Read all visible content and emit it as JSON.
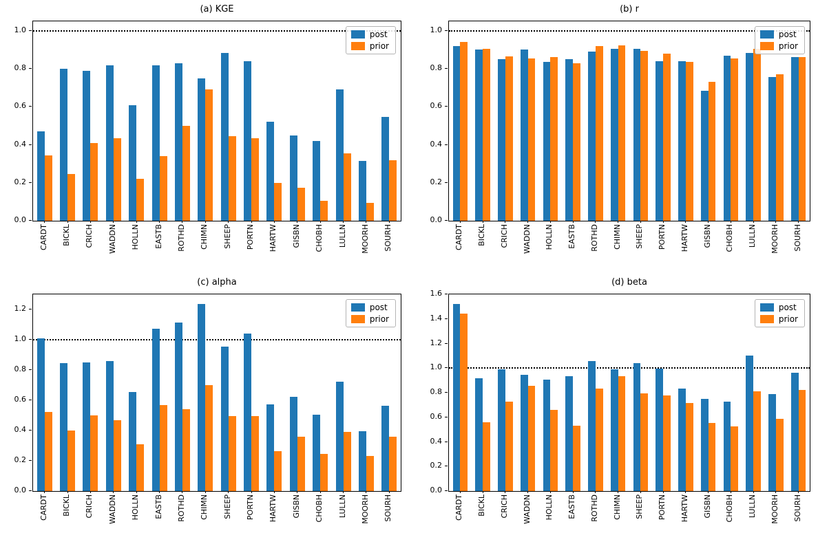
{
  "colors": {
    "post": "#1f77b4",
    "prior": "#ff7f0e",
    "refline": "#000000"
  },
  "legend": {
    "entries": [
      "post",
      "prior"
    ],
    "position": "upper right"
  },
  "chart_data": [
    {
      "type": "bar",
      "title": "(a) KGE",
      "categories": [
        "CARDT",
        "BICKL",
        "CRICH",
        "WADDN",
        "HOLLN",
        "EASTB",
        "ROTHD",
        "CHIMN",
        "SHEEP",
        "PORTN",
        "HARTW",
        "GISBN",
        "CHOBH",
        "LULLN",
        "MOORH",
        "SOURH"
      ],
      "series": [
        {
          "name": "post",
          "color": "#1f77b4",
          "values": [
            0.47,
            0.8,
            0.79,
            0.82,
            0.61,
            0.82,
            0.83,
            0.75,
            0.885,
            0.84,
            0.52,
            0.45,
            0.42,
            0.69,
            0.315,
            0.545
          ]
        },
        {
          "name": "prior",
          "color": "#ff7f0e",
          "values": [
            0.345,
            0.245,
            0.41,
            0.435,
            0.22,
            0.34,
            0.5,
            0.69,
            0.445,
            0.435,
            0.2,
            0.175,
            0.105,
            0.355,
            0.095,
            0.32
          ]
        }
      ],
      "ylim": [
        0,
        1.05
      ],
      "yticks": [
        0.0,
        0.2,
        0.4,
        0.6,
        0.8,
        1.0
      ],
      "refline": 1.0,
      "grid": false,
      "legend_position": "upper right"
    },
    {
      "type": "bar",
      "title": "(b) r",
      "categories": [
        "CARDT",
        "BICKL",
        "CRICH",
        "WADDN",
        "HOLLN",
        "EASTB",
        "ROTHD",
        "CHIMN",
        "SHEEP",
        "PORTN",
        "HARTW",
        "GISBN",
        "CHOBH",
        "LULLN",
        "MOORH",
        "SOURH"
      ],
      "series": [
        {
          "name": "post",
          "color": "#1f77b4",
          "values": [
            0.92,
            0.9,
            0.85,
            0.9,
            0.835,
            0.85,
            0.89,
            0.905,
            0.905,
            0.84,
            0.84,
            0.685,
            0.87,
            0.885,
            0.755,
            0.86
          ]
        },
        {
          "name": "prior",
          "color": "#ff7f0e",
          "values": [
            0.94,
            0.905,
            0.865,
            0.855,
            0.86,
            0.83,
            0.92,
            0.925,
            0.895,
            0.88,
            0.835,
            0.73,
            0.855,
            0.905,
            0.77,
            0.86
          ]
        }
      ],
      "ylim": [
        0,
        1.05
      ],
      "yticks": [
        0.0,
        0.2,
        0.4,
        0.6,
        0.8,
        1.0
      ],
      "refline": 1.0,
      "grid": false,
      "legend_position": "upper right"
    },
    {
      "type": "bar",
      "title": "(c) alpha",
      "categories": [
        "CARDT",
        "BICKL",
        "CRICH",
        "WADDN",
        "HOLLN",
        "EASTB",
        "ROTHD",
        "CHIMN",
        "SHEEP",
        "PORTN",
        "HARTW",
        "GISBN",
        "CHOBH",
        "LULLN",
        "MOORH",
        "SOURH"
      ],
      "series": [
        {
          "name": "post",
          "color": "#1f77b4",
          "values": [
            1.01,
            0.845,
            0.85,
            0.86,
            0.655,
            1.075,
            1.115,
            1.235,
            0.955,
            1.04,
            0.575,
            0.625,
            0.505,
            0.725,
            0.395,
            0.565
          ]
        },
        {
          "name": "prior",
          "color": "#ff7f0e",
          "values": [
            0.525,
            0.4,
            0.5,
            0.47,
            0.31,
            0.57,
            0.54,
            0.7,
            0.495,
            0.495,
            0.265,
            0.36,
            0.245,
            0.39,
            0.23,
            0.36
          ]
        }
      ],
      "ylim": [
        0,
        1.3
      ],
      "yticks": [
        0.0,
        0.2,
        0.4,
        0.6,
        0.8,
        1.0,
        1.2
      ],
      "refline": 1.0,
      "grid": false,
      "legend_position": "upper right"
    },
    {
      "type": "bar",
      "title": "(d) beta",
      "categories": [
        "CARDT",
        "BICKL",
        "CRICH",
        "WADDN",
        "HOLLN",
        "EASTB",
        "ROTHD",
        "CHIMN",
        "SHEEP",
        "PORTN",
        "HARTW",
        "GISBN",
        "CHOBH",
        "LULLN",
        "MOORH",
        "SOURH"
      ],
      "series": [
        {
          "name": "post",
          "color": "#1f77b4",
          "values": [
            1.52,
            0.915,
            0.99,
            0.945,
            0.905,
            0.935,
            1.06,
            0.99,
            1.04,
            0.995,
            0.835,
            0.75,
            0.73,
            1.1,
            0.79,
            0.965
          ]
        },
        {
          "name": "prior",
          "color": "#ff7f0e",
          "values": [
            1.445,
            0.56,
            0.73,
            0.855,
            0.66,
            0.53,
            0.835,
            0.935,
            0.795,
            0.78,
            0.715,
            0.555,
            0.525,
            0.81,
            0.585,
            0.825
          ]
        }
      ],
      "ylim": [
        0,
        1.6
      ],
      "yticks": [
        0.0,
        0.2,
        0.4,
        0.6,
        0.8,
        1.0,
        1.2,
        1.4,
        1.6
      ],
      "refline": 1.0,
      "grid": false,
      "legend_position": "upper right"
    }
  ]
}
